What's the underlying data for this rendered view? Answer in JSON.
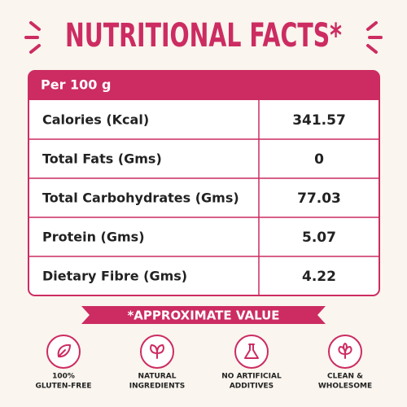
{
  "header": {
    "title": "NUTRITIONAL FACTS*"
  },
  "table": {
    "header": "Per 100 g",
    "rows": [
      [
        "Calories (Kcal)",
        "341.57"
      ],
      [
        "Total Fats (Gms)",
        "0"
      ],
      [
        "Total Carbohydrates (Gms)",
        "77.03"
      ],
      [
        "Protein (Gms)",
        "5.07"
      ],
      [
        "Dietary Fibre (Gms)",
        "4.22"
      ]
    ]
  },
  "footnote": "*APPROXIMATE VALUE",
  "badges": [
    {
      "lines": [
        "100%",
        "GLUTEN-FREE"
      ]
    },
    {
      "lines": [
        "NATURAL",
        "INGREDIENTS"
      ]
    },
    {
      "lines": [
        "NO ARTIFICIAL",
        "ADDITIVES"
      ]
    },
    {
      "lines": [
        "CLEAN &",
        "WHOLESOME"
      ]
    }
  ]
}
